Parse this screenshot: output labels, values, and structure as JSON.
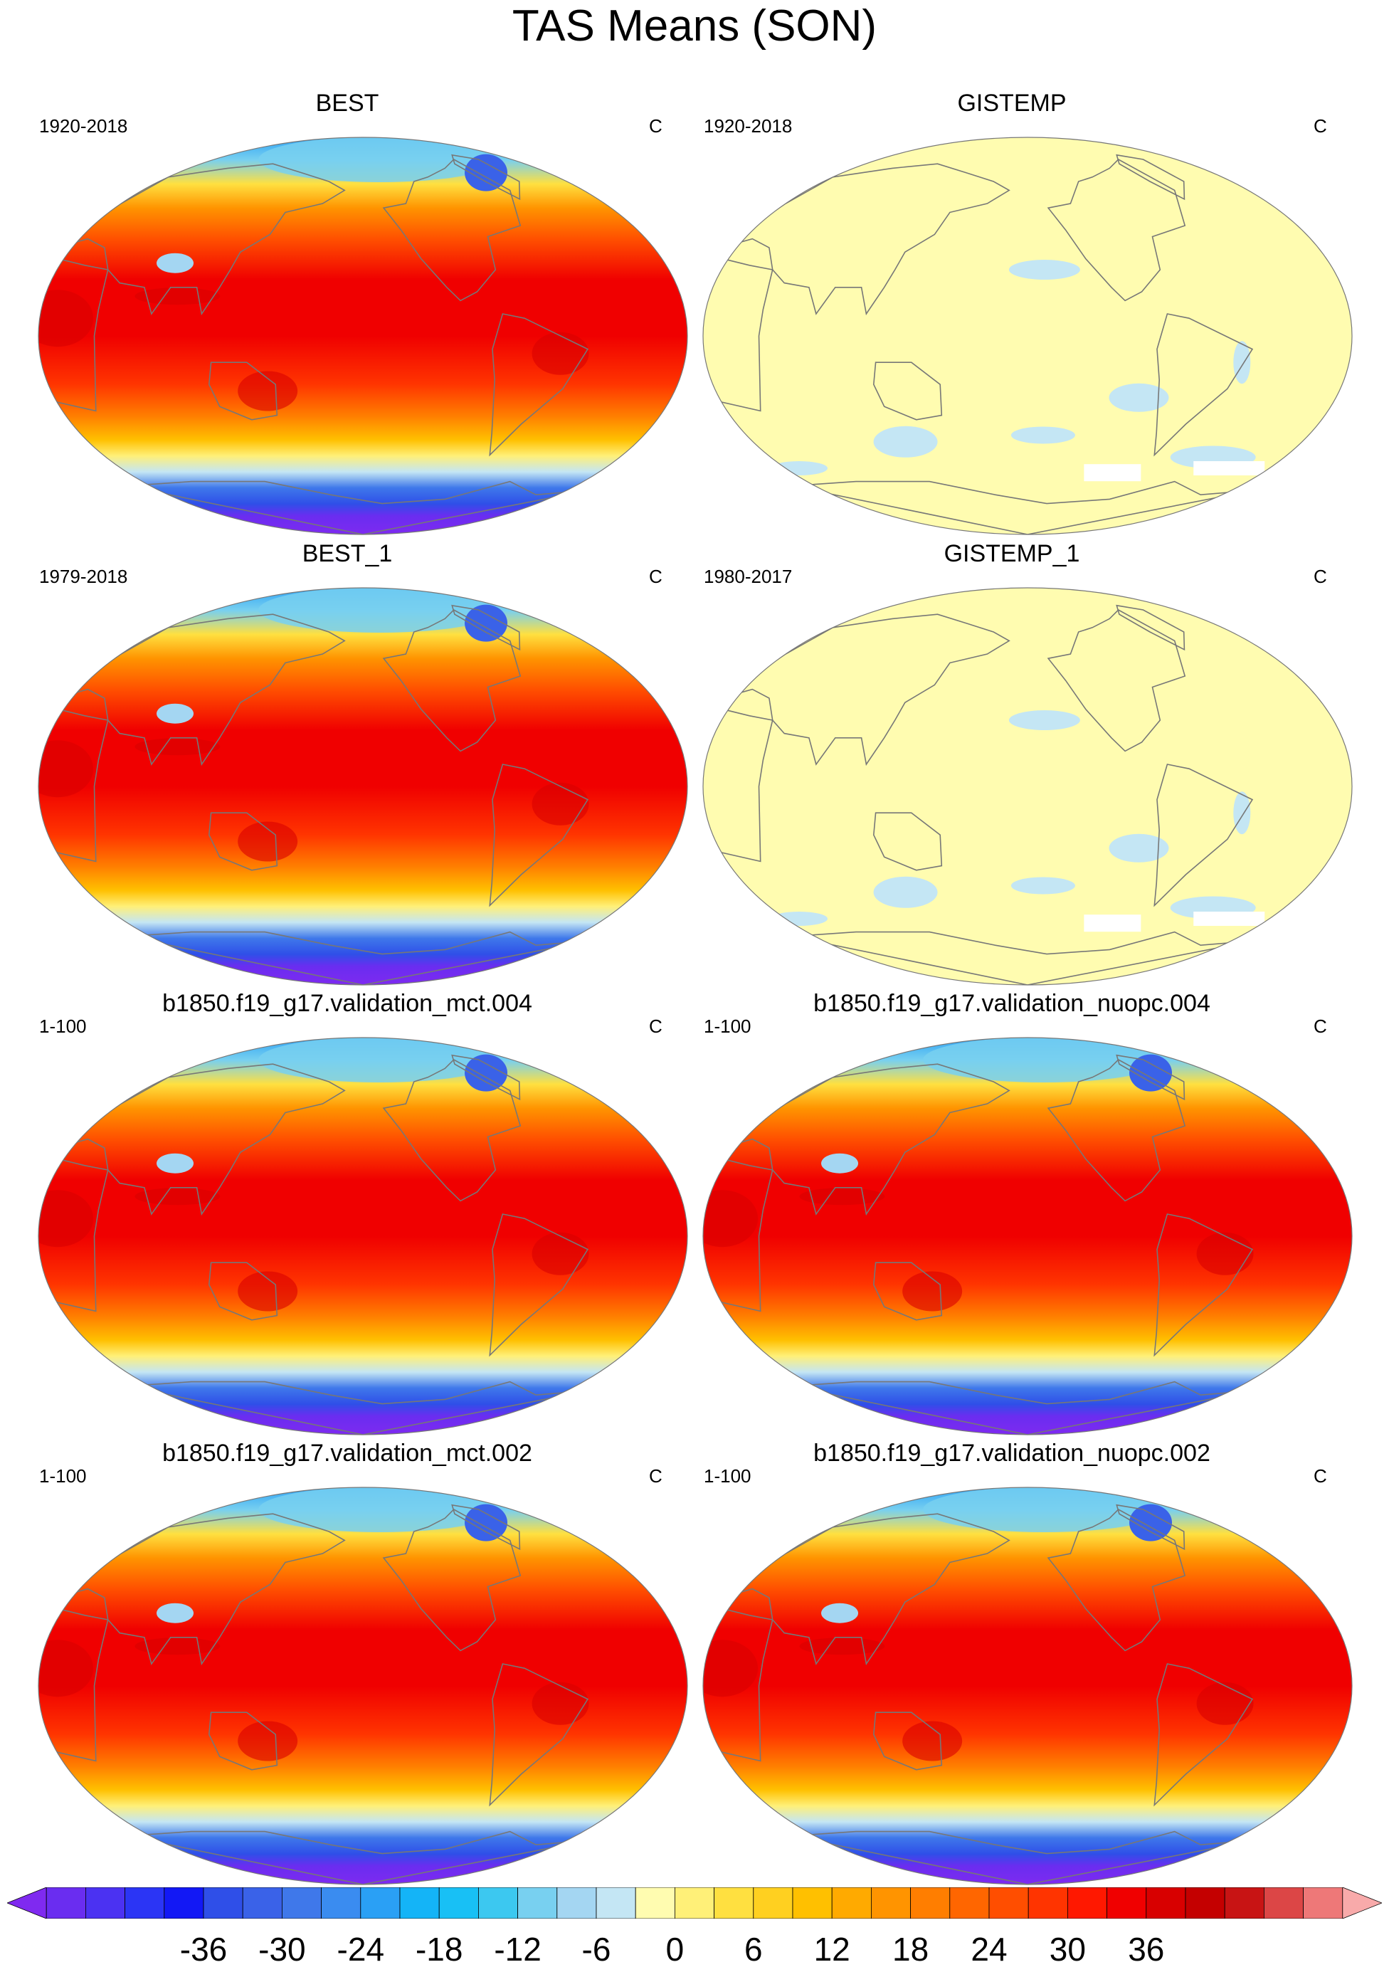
{
  "title": "TAS Means (SON)",
  "panels": [
    {
      "title": "BEST",
      "period": "1920-2018",
      "units": "C",
      "style": "full"
    },
    {
      "title": "GISTEMP",
      "period": "1920-2018",
      "units": "C",
      "style": "anomaly"
    },
    {
      "title": "BEST_1",
      "period": "1979-2018",
      "units": "C",
      "style": "full"
    },
    {
      "title": "GISTEMP_1",
      "period": "1980-2017",
      "units": "C",
      "style": "anomaly"
    },
    {
      "title": "b1850.f19_g17.validation_mct.004",
      "period": "1-100",
      "units": "C",
      "style": "full"
    },
    {
      "title": "b1850.f19_g17.validation_nuopc.004",
      "period": "1-100",
      "units": "C",
      "style": "full"
    },
    {
      "title": "b1850.f19_g17.validation_mct.002",
      "period": "1-100",
      "units": "C",
      "style": "full"
    },
    {
      "title": "b1850.f19_g17.validation_nuopc.002",
      "period": "1-100",
      "units": "C",
      "style": "full"
    }
  ],
  "colorbar": {
    "labels": [
      "-36",
      "-30",
      "-24",
      "-18",
      "-12",
      "-6",
      "0",
      "6",
      "12",
      "18",
      "24",
      "30",
      "36"
    ],
    "colors": [
      "#7f2af0",
      "#6a2df0",
      "#4b32f2",
      "#2b35f5",
      "#1218f5",
      "#2f4fe8",
      "#3a62e8",
      "#3f78ea",
      "#3a8cf0",
      "#2aa0f5",
      "#14b4f7",
      "#18c0f5",
      "#3cc8f0",
      "#78d0f0",
      "#a4d6f2",
      "#c4e6f4",
      "#fffcb0",
      "#fff078",
      "#ffe040",
      "#ffd020",
      "#ffc000",
      "#ffaa00",
      "#ff9400",
      "#ff7e00",
      "#ff6600",
      "#ff4e00",
      "#ff3400",
      "#ff1800",
      "#f00000",
      "#d80000",
      "#c40000",
      "#c81414",
      "#dc4646",
      "#ee7878",
      "#f8aaaa"
    ],
    "tick_values": [
      -36,
      -30,
      -24,
      -18,
      -12,
      -6,
      0,
      6,
      12,
      18,
      24,
      30,
      36
    ]
  }
}
